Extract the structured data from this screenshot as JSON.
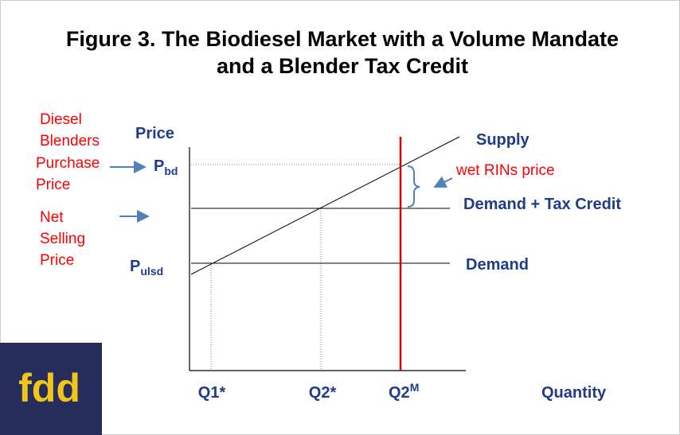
{
  "title": [
    "Figure 3. The Biodiesel Market with a Volume Mandate",
    "and a Blender Tax Credit"
  ],
  "left_labels": {
    "group": [
      "Diesel",
      "Blenders"
    ],
    "purchase": [
      "Purchase",
      "Price"
    ],
    "net": [
      "Net",
      "Selling",
      "Price"
    ]
  },
  "axis": {
    "y": "Price",
    "x": "Quantity"
  },
  "prices": {
    "bd": {
      "symbol": "P",
      "subscript": "bd"
    },
    "ulsd": {
      "symbol": "P",
      "subscript": "ulsd"
    }
  },
  "curves": {
    "supply": "Supply",
    "demand_tax": "Demand + Tax Credit",
    "demand": "Demand"
  },
  "annotation": "wet RINs price",
  "quantities": {
    "q1": "Q1*",
    "q2": "Q2*",
    "q2m": {
      "base": "Q2",
      "superscript": "M"
    }
  },
  "logo": "fdd"
}
